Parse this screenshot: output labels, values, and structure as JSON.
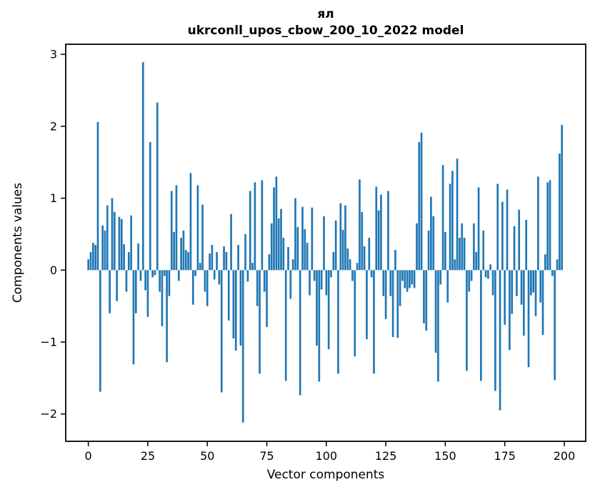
{
  "figure": {
    "background": "#ffffff"
  },
  "chart_data": {
    "type": "bar",
    "title": "ял",
    "subtitle": "ukrconll_upos_cbow_200_10_2022 model",
    "xlabel": "Vector components",
    "ylabel": "Components values",
    "bar_color": "#1f77b4",
    "axis_color": "#000000",
    "grid": false,
    "legend_position": "none",
    "xlim": [
      -9.5,
      209
    ],
    "ylim": [
      -2.38,
      3.14
    ],
    "bar_width_units": 0.8,
    "yticks": [
      {
        "value": 3,
        "label": "3"
      },
      {
        "value": 2,
        "label": "2"
      },
      {
        "value": 1,
        "label": "1"
      },
      {
        "value": 0,
        "label": "0"
      },
      {
        "value": -1,
        "label": "−1"
      },
      {
        "value": -2,
        "label": "−2"
      }
    ],
    "xticks": [
      {
        "value": 0,
        "label": "0"
      },
      {
        "value": 25,
        "label": "25"
      },
      {
        "value": 50,
        "label": "50"
      },
      {
        "value": 75,
        "label": "75"
      },
      {
        "value": 100,
        "label": "100"
      },
      {
        "value": 125,
        "label": "125"
      },
      {
        "value": 150,
        "label": "150"
      },
      {
        "value": 175,
        "label": "175"
      },
      {
        "value": 200,
        "label": "200"
      }
    ],
    "x_start_component": 0,
    "values": [
      0.15,
      0.25,
      0.38,
      0.35,
      2.06,
      -1.69,
      0.62,
      0.55,
      0.9,
      -0.6,
      1.0,
      0.81,
      -0.43,
      0.74,
      0.71,
      0.36,
      -0.3,
      0.25,
      0.76,
      -1.31,
      -0.6,
      0.37,
      -0.15,
      2.89,
      -0.28,
      -0.65,
      1.78,
      -0.1,
      -0.07,
      2.33,
      -0.3,
      -0.78,
      -0.08,
      -1.28,
      -0.36,
      1.1,
      0.53,
      1.18,
      -0.15,
      0.45,
      0.55,
      0.28,
      0.25,
      1.35,
      -0.48,
      -0.08,
      1.18,
      0.1,
      0.91,
      -0.3,
      -0.5,
      0.23,
      0.35,
      -0.13,
      0.25,
      -0.2,
      -1.7,
      0.33,
      0.25,
      -0.7,
      0.78,
      -0.95,
      -1.12,
      0.35,
      -1.05,
      -2.12,
      0.5,
      -0.16,
      1.1,
      0.1,
      1.22,
      -0.5,
      -1.44,
      1.25,
      -0.3,
      -0.79,
      0.22,
      0.65,
      1.15,
      1.3,
      0.72,
      0.85,
      0.45,
      -1.54,
      0.32,
      -0.4,
      0.15,
      1.0,
      0.6,
      -1.74,
      0.88,
      0.57,
      0.38,
      -0.35,
      0.87,
      -0.15,
      -1.05,
      -1.55,
      -0.27,
      0.75,
      -0.35,
      -1.1,
      -0.1,
      0.25,
      0.69,
      -1.44,
      0.93,
      0.56,
      0.9,
      0.3,
      0.15,
      -0.15,
      -1.2,
      0.1,
      1.26,
      0.81,
      0.33,
      -0.96,
      0.45,
      -0.1,
      -1.44,
      1.16,
      0.83,
      1.05,
      -0.36,
      -0.68,
      1.1,
      -0.36,
      -0.93,
      0.28,
      -0.94,
      -0.5,
      -0.15,
      -0.25,
      -0.3,
      -0.25,
      -0.2,
      -0.25,
      0.65,
      1.78,
      1.91,
      -0.74,
      -0.84,
      0.55,
      1.02,
      0.75,
      -1.15,
      -1.55,
      -0.2,
      1.46,
      0.53,
      -0.45,
      1.2,
      1.38,
      0.15,
      1.55,
      0.45,
      0.65,
      0.45,
      -1.4,
      -0.3,
      -0.15,
      0.65,
      0.25,
      1.15,
      -1.54,
      0.55,
      -0.1,
      -0.12,
      0.08,
      -0.35,
      -1.68,
      1.2,
      -1.95,
      0.95,
      -0.76,
      1.12,
      -1.11,
      -0.61,
      0.61,
      -0.36,
      0.84,
      -0.48,
      -0.91,
      0.7,
      -1.35,
      -0.35,
      -0.31,
      -0.64,
      1.3,
      -0.45,
      -0.9,
      0.22,
      1.22,
      1.25,
      -0.08,
      -1.53,
      0.15,
      1.62,
      2.02
    ]
  }
}
